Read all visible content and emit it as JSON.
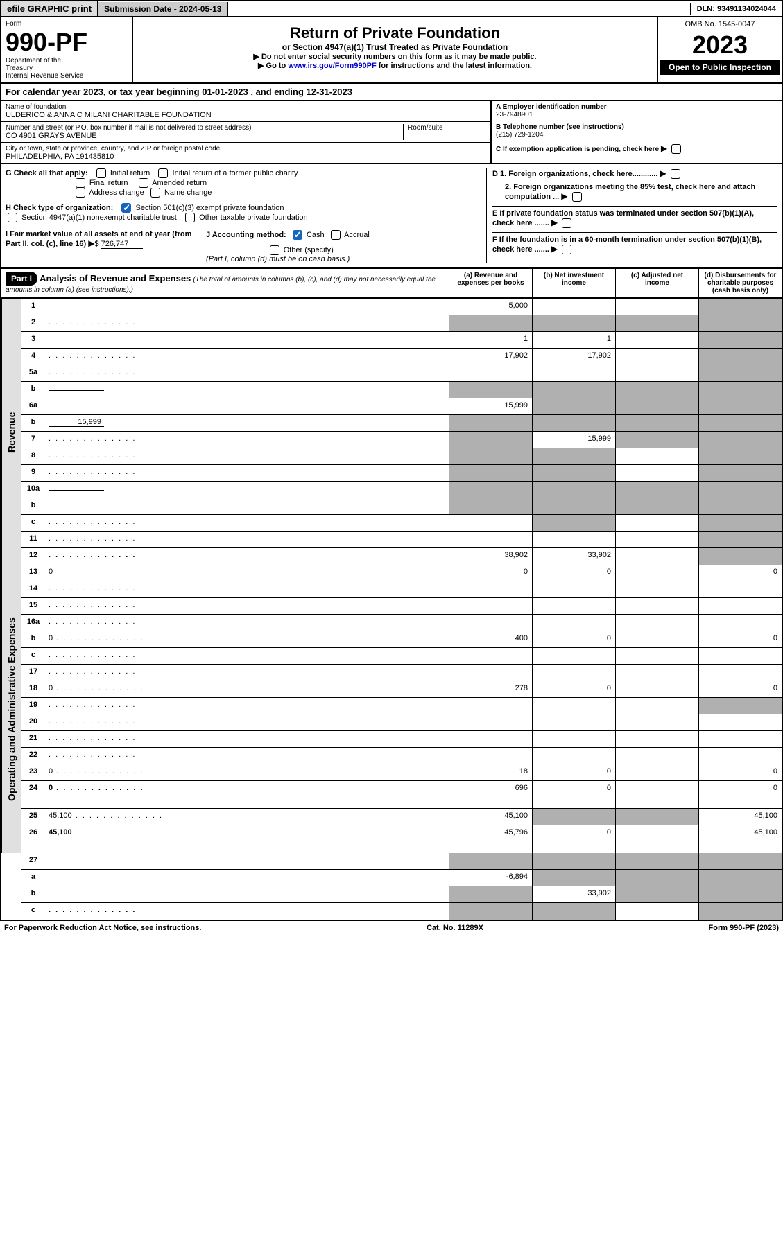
{
  "topbar": {
    "efile": "efile GRAPHIC print",
    "subdate_label": "Submission Date - 2024-05-13",
    "dln": "DLN: 93491134024044"
  },
  "header": {
    "form_label": "Form",
    "form_num": "990-PF",
    "dept": "Department of the Treasury\nInternal Revenue Service",
    "title": "Return of Private Foundation",
    "subtitle": "or Section 4947(a)(1) Trust Treated as Private Foundation",
    "instr1": "▶ Do not enter social security numbers on this form as it may be made public.",
    "instr2_pre": "▶ Go to ",
    "instr2_link": "www.irs.gov/Form990PF",
    "instr2_post": " for instructions and the latest information.",
    "omb": "OMB No. 1545-0047",
    "year": "2023",
    "open_public": "Open to Public Inspection"
  },
  "cal_year": "For calendar year 2023, or tax year beginning 01-01-2023              , and ending 12-31-2023",
  "info": {
    "name_label": "Name of foundation",
    "name": "ULDERICO & ANNA C MILANI CHARITABLE FOUNDATION",
    "addr_label": "Number and street (or P.O. box number if mail is not delivered to street address)",
    "addr": "CO 4901 GRAYS AVENUE",
    "room_label": "Room/suite",
    "city_label": "City or town, state or province, country, and ZIP or foreign postal code",
    "city": "PHILADELPHIA, PA  191435810",
    "ein_label": "A Employer identification number",
    "ein": "23-7948901",
    "phone_label": "B Telephone number (see instructions)",
    "phone": "(215) 729-1204",
    "c_label": "C If exemption application is pending, check here",
    "d1": "D 1. Foreign organizations, check here............",
    "d2": "2. Foreign organizations meeting the 85% test, check here and attach computation ...",
    "e": "E  If private foundation status was terminated under section 507(b)(1)(A), check here .......",
    "f": "F  If the foundation is in a 60-month termination under section 507(b)(1)(B), check here .......",
    "g_label": "G Check all that apply:",
    "g_initial": "Initial return",
    "g_initial_former": "Initial return of a former public charity",
    "g_final": "Final return",
    "g_amended": "Amended return",
    "g_addr": "Address change",
    "g_name": "Name change",
    "h_label": "H Check type of organization:",
    "h_501c3": "Section 501(c)(3) exempt private foundation",
    "h_4947": "Section 4947(a)(1) nonexempt charitable trust",
    "h_other_tax": "Other taxable private foundation",
    "i_label": "I Fair market value of all assets at end of year (from Part II, col. (c), line 16)",
    "i_value": "726,747",
    "j_label": "J Accounting method:",
    "j_cash": "Cash",
    "j_accrual": "Accrual",
    "j_other": "Other (specify)",
    "j_note": "(Part I, column (d) must be on cash basis.)"
  },
  "part1": {
    "label": "Part I",
    "title": "Analysis of Revenue and Expenses",
    "title_note": "(The total of amounts in columns (b), (c), and (d) may not necessarily equal the amounts in column (a) (see instructions).)",
    "col_a": "(a) Revenue and expenses per books",
    "col_b": "(b) Net investment income",
    "col_c": "(c) Adjusted net income",
    "col_d": "(d) Disbursements for charitable purposes (cash basis only)"
  },
  "sides": {
    "revenue": "Revenue",
    "opex": "Operating and Administrative Expenses"
  },
  "lines": [
    {
      "n": "1",
      "d": "",
      "a": "5,000",
      "b": "",
      "c": "",
      "shade_c": false,
      "shade_d": true
    },
    {
      "n": "2",
      "d": "",
      "a": "",
      "b": "",
      "c": "",
      "shade_a": true,
      "shade_b": true,
      "shade_c": true,
      "shade_d": true,
      "dots": true
    },
    {
      "n": "3",
      "d": "",
      "a": "1",
      "b": "1",
      "c": "",
      "shade_d": true
    },
    {
      "n": "4",
      "d": "",
      "a": "17,902",
      "b": "17,902",
      "c": "",
      "shade_d": true,
      "dots": true
    },
    {
      "n": "5a",
      "d": "",
      "a": "",
      "b": "",
      "c": "",
      "shade_d": true,
      "dots": true
    },
    {
      "n": "b",
      "d": "",
      "a": "",
      "b": "",
      "c": "",
      "shade_a": true,
      "shade_b": true,
      "shade_c": true,
      "shade_d": true,
      "inline": true
    },
    {
      "n": "6a",
      "d": "",
      "a": "15,999",
      "b": "",
      "c": "",
      "shade_b": true,
      "shade_c": true,
      "shade_d": true
    },
    {
      "n": "b",
      "d": "",
      "a": "",
      "b": "",
      "c": "",
      "shade_a": true,
      "shade_b": true,
      "shade_c": true,
      "shade_d": true,
      "inline_val": "15,999"
    },
    {
      "n": "7",
      "d": "",
      "a": "",
      "b": "15,999",
      "c": "",
      "shade_a": true,
      "shade_c": true,
      "shade_d": true,
      "dots": true
    },
    {
      "n": "8",
      "d": "",
      "a": "",
      "b": "",
      "c": "",
      "shade_a": true,
      "shade_b": true,
      "shade_d": true,
      "dots": true
    },
    {
      "n": "9",
      "d": "",
      "a": "",
      "b": "",
      "c": "",
      "shade_a": true,
      "shade_b": true,
      "shade_d": true,
      "dots": true
    },
    {
      "n": "10a",
      "d": "",
      "a": "",
      "b": "",
      "c": "",
      "shade_a": true,
      "shade_b": true,
      "shade_c": true,
      "shade_d": true,
      "inline": true
    },
    {
      "n": "b",
      "d": "",
      "a": "",
      "b": "",
      "c": "",
      "shade_a": true,
      "shade_b": true,
      "shade_c": true,
      "shade_d": true,
      "inline": true,
      "dots": true
    },
    {
      "n": "c",
      "d": "",
      "a": "",
      "b": "",
      "c": "",
      "shade_b": true,
      "shade_d": true,
      "dots": true
    },
    {
      "n": "11",
      "d": "",
      "a": "",
      "b": "",
      "c": "",
      "shade_d": true,
      "dots": true
    },
    {
      "n": "12",
      "d": "",
      "a": "38,902",
      "b": "33,902",
      "c": "",
      "shade_d": true,
      "bold": true,
      "dots": true
    }
  ],
  "expense_lines": [
    {
      "n": "13",
      "d": "0",
      "a": "0",
      "b": "0",
      "c": ""
    },
    {
      "n": "14",
      "d": "",
      "a": "",
      "b": "",
      "c": "",
      "dots": true
    },
    {
      "n": "15",
      "d": "",
      "a": "",
      "b": "",
      "c": "",
      "dots": true
    },
    {
      "n": "16a",
      "d": "",
      "a": "",
      "b": "",
      "c": "",
      "dots": true
    },
    {
      "n": "b",
      "d": "0",
      "a": "400",
      "b": "0",
      "c": "",
      "dots": true
    },
    {
      "n": "c",
      "d": "",
      "a": "",
      "b": "",
      "c": "",
      "dots": true
    },
    {
      "n": "17",
      "d": "",
      "a": "",
      "b": "",
      "c": "",
      "dots": true
    },
    {
      "n": "18",
      "d": "0",
      "a": "278",
      "b": "0",
      "c": "",
      "dots": true
    },
    {
      "n": "19",
      "d": "",
      "a": "",
      "b": "",
      "c": "",
      "shade_d": true,
      "dots": true
    },
    {
      "n": "20",
      "d": "",
      "a": "",
      "b": "",
      "c": "",
      "dots": true
    },
    {
      "n": "21",
      "d": "",
      "a": "",
      "b": "",
      "c": "",
      "dots": true
    },
    {
      "n": "22",
      "d": "",
      "a": "",
      "b": "",
      "c": "",
      "dots": true
    },
    {
      "n": "23",
      "d": "0",
      "a": "18",
      "b": "0",
      "c": "",
      "dots": true
    },
    {
      "n": "24",
      "d": "0",
      "a": "696",
      "b": "0",
      "c": "",
      "bold": true,
      "dots": true,
      "tall": true
    },
    {
      "n": "25",
      "d": "45,100",
      "a": "45,100",
      "b": "",
      "c": "",
      "shade_b": true,
      "shade_c": true,
      "dots": true
    },
    {
      "n": "26",
      "d": "45,100",
      "a": "45,796",
      "b": "0",
      "c": "",
      "bold": true,
      "tall": true
    }
  ],
  "bottom_lines": [
    {
      "n": "27",
      "d": "",
      "a": "",
      "b": "",
      "c": "",
      "shade_a": true,
      "shade_b": true,
      "shade_c": true,
      "shade_d": true
    },
    {
      "n": "a",
      "d": "",
      "a": "-6,894",
      "b": "",
      "c": "",
      "bold": true,
      "shade_b": true,
      "shade_c": true,
      "shade_d": true
    },
    {
      "n": "b",
      "d": "",
      "a": "",
      "b": "33,902",
      "c": "",
      "bold": true,
      "shade_a": true,
      "shade_c": true,
      "shade_d": true
    },
    {
      "n": "c",
      "d": "",
      "a": "",
      "b": "",
      "c": "",
      "bold": true,
      "shade_a": true,
      "shade_b": true,
      "shade_d": true,
      "dots": true
    }
  ],
  "footer": {
    "left": "For Paperwork Reduction Act Notice, see instructions.",
    "center": "Cat. No. 11289X",
    "right": "Form 990-PF (2023)"
  }
}
